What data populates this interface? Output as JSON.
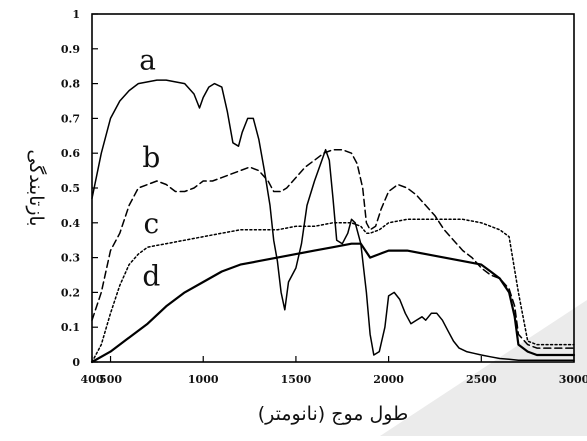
{
  "chart_data": {
    "type": "line",
    "title": "",
    "xlabel": "طول موج (نانومتر)",
    "ylabel": "بازتابندگی",
    "xlim": [
      400,
      3000
    ],
    "ylim": [
      0,
      1
    ],
    "x_ticks": [
      400,
      500,
      1000,
      1500,
      2000,
      2500,
      3000
    ],
    "x_tick_labels": [
      "400",
      "500",
      "1000",
      "1500",
      "2000",
      "2500",
      "3000"
    ],
    "y_ticks": [
      0,
      0.1,
      0.2,
      0.3,
      0.4,
      0.5,
      0.6,
      0.7,
      0.8,
      0.9,
      1
    ],
    "y_tick_labels": [
      "0",
      "0.1",
      "0.2",
      "0.3",
      "0.4",
      "0.5",
      "0.6",
      "0.7",
      "0.8",
      "0.9",
      "1"
    ],
    "grid": false,
    "legend": "inline labels",
    "series": [
      {
        "name": "a",
        "style": "solid",
        "color": "#000000",
        "label_at": [
          700,
          0.84
        ],
        "x": [
          400,
          450,
          500,
          550,
          600,
          650,
          700,
          750,
          800,
          850,
          900,
          950,
          980,
          1000,
          1030,
          1060,
          1100,
          1130,
          1160,
          1190,
          1210,
          1240,
          1270,
          1300,
          1330,
          1360,
          1380,
          1400,
          1420,
          1440,
          1460,
          1480,
          1500,
          1530,
          1560,
          1600,
          1640,
          1660,
          1680,
          1700,
          1720,
          1750,
          1780,
          1800,
          1820,
          1850,
          1880,
          1900,
          1920,
          1950,
          1980,
          2000,
          2030,
          2060,
          2090,
          2120,
          2150,
          2180,
          2200,
          2230,
          2260,
          2290,
          2320,
          2350,
          2380,
          2420,
          2460,
          2500,
          2550,
          2600,
          2650,
          2700,
          2750,
          2800,
          2900,
          3000
        ],
        "y": [
          0.47,
          0.6,
          0.7,
          0.75,
          0.78,
          0.8,
          0.805,
          0.81,
          0.81,
          0.805,
          0.8,
          0.77,
          0.73,
          0.76,
          0.79,
          0.8,
          0.79,
          0.72,
          0.63,
          0.62,
          0.66,
          0.7,
          0.7,
          0.64,
          0.55,
          0.45,
          0.35,
          0.29,
          0.2,
          0.15,
          0.23,
          0.25,
          0.27,
          0.34,
          0.45,
          0.52,
          0.58,
          0.61,
          0.58,
          0.47,
          0.35,
          0.34,
          0.37,
          0.41,
          0.4,
          0.34,
          0.2,
          0.08,
          0.02,
          0.03,
          0.1,
          0.19,
          0.2,
          0.18,
          0.14,
          0.11,
          0.12,
          0.13,
          0.12,
          0.14,
          0.14,
          0.12,
          0.09,
          0.06,
          0.04,
          0.03,
          0.025,
          0.02,
          0.015,
          0.01,
          0.008,
          0.005,
          0.005,
          0.005,
          0.005,
          0.005
        ]
      },
      {
        "name": "b",
        "style": "dashed",
        "color": "#000000",
        "label_at": [
          720,
          0.56
        ],
        "x": [
          400,
          450,
          500,
          550,
          600,
          650,
          700,
          750,
          800,
          850,
          900,
          950,
          1000,
          1050,
          1100,
          1150,
          1200,
          1250,
          1300,
          1350,
          1380,
          1420,
          1450,
          1500,
          1550,
          1600,
          1650,
          1700,
          1750,
          1800,
          1830,
          1860,
          1880,
          1900,
          1930,
          1960,
          2000,
          2050,
          2100,
          2150,
          2200,
          2250,
          2300,
          2350,
          2400,
          2450,
          2500,
          2550,
          2600,
          2650,
          2680,
          2700,
          2750,
          2800,
          2850,
          2900,
          2950,
          3000
        ],
        "y": [
          0.12,
          0.2,
          0.32,
          0.37,
          0.45,
          0.5,
          0.51,
          0.52,
          0.51,
          0.49,
          0.49,
          0.5,
          0.52,
          0.52,
          0.53,
          0.54,
          0.55,
          0.56,
          0.55,
          0.52,
          0.49,
          0.49,
          0.5,
          0.53,
          0.56,
          0.58,
          0.6,
          0.61,
          0.61,
          0.6,
          0.57,
          0.5,
          0.4,
          0.38,
          0.39,
          0.44,
          0.49,
          0.51,
          0.5,
          0.48,
          0.45,
          0.42,
          0.38,
          0.35,
          0.32,
          0.3,
          0.27,
          0.25,
          0.24,
          0.21,
          0.16,
          0.08,
          0.05,
          0.04,
          0.04,
          0.04,
          0.04,
          0.04
        ]
      },
      {
        "name": "c",
        "style": "dotted",
        "color": "#000000",
        "label_at": [
          720,
          0.37
        ],
        "x": [
          400,
          450,
          500,
          550,
          600,
          650,
          700,
          750,
          800,
          900,
          1000,
          1100,
          1200,
          1300,
          1400,
          1500,
          1600,
          1700,
          1750,
          1800,
          1850,
          1880,
          1900,
          1950,
          2000,
          2100,
          2200,
          2300,
          2400,
          2500,
          2550,
          2600,
          2650,
          2700,
          2750,
          2800,
          2850,
          2900,
          3000
        ],
        "y": [
          0.0,
          0.05,
          0.14,
          0.22,
          0.28,
          0.31,
          0.33,
          0.335,
          0.34,
          0.35,
          0.36,
          0.37,
          0.38,
          0.38,
          0.38,
          0.39,
          0.39,
          0.4,
          0.4,
          0.4,
          0.39,
          0.37,
          0.37,
          0.38,
          0.4,
          0.41,
          0.41,
          0.41,
          0.41,
          0.4,
          0.39,
          0.38,
          0.36,
          0.2,
          0.06,
          0.05,
          0.05,
          0.05,
          0.05
        ]
      },
      {
        "name": "d",
        "style": "solid-thick",
        "color": "#000000",
        "label_at": [
          720,
          0.22
        ],
        "x": [
          400,
          500,
          600,
          700,
          800,
          900,
          1000,
          1100,
          1200,
          1300,
          1400,
          1500,
          1600,
          1700,
          1800,
          1850,
          1900,
          1950,
          2000,
          2100,
          2200,
          2300,
          2400,
          2500,
          2550,
          2600,
          2650,
          2680,
          2700,
          2750,
          2800,
          2900,
          3000
        ],
        "y": [
          0.0,
          0.03,
          0.07,
          0.11,
          0.16,
          0.2,
          0.23,
          0.26,
          0.28,
          0.29,
          0.3,
          0.31,
          0.32,
          0.33,
          0.34,
          0.34,
          0.3,
          0.31,
          0.32,
          0.32,
          0.31,
          0.3,
          0.29,
          0.28,
          0.26,
          0.24,
          0.2,
          0.13,
          0.05,
          0.03,
          0.02,
          0.02,
          0.02
        ]
      }
    ]
  }
}
